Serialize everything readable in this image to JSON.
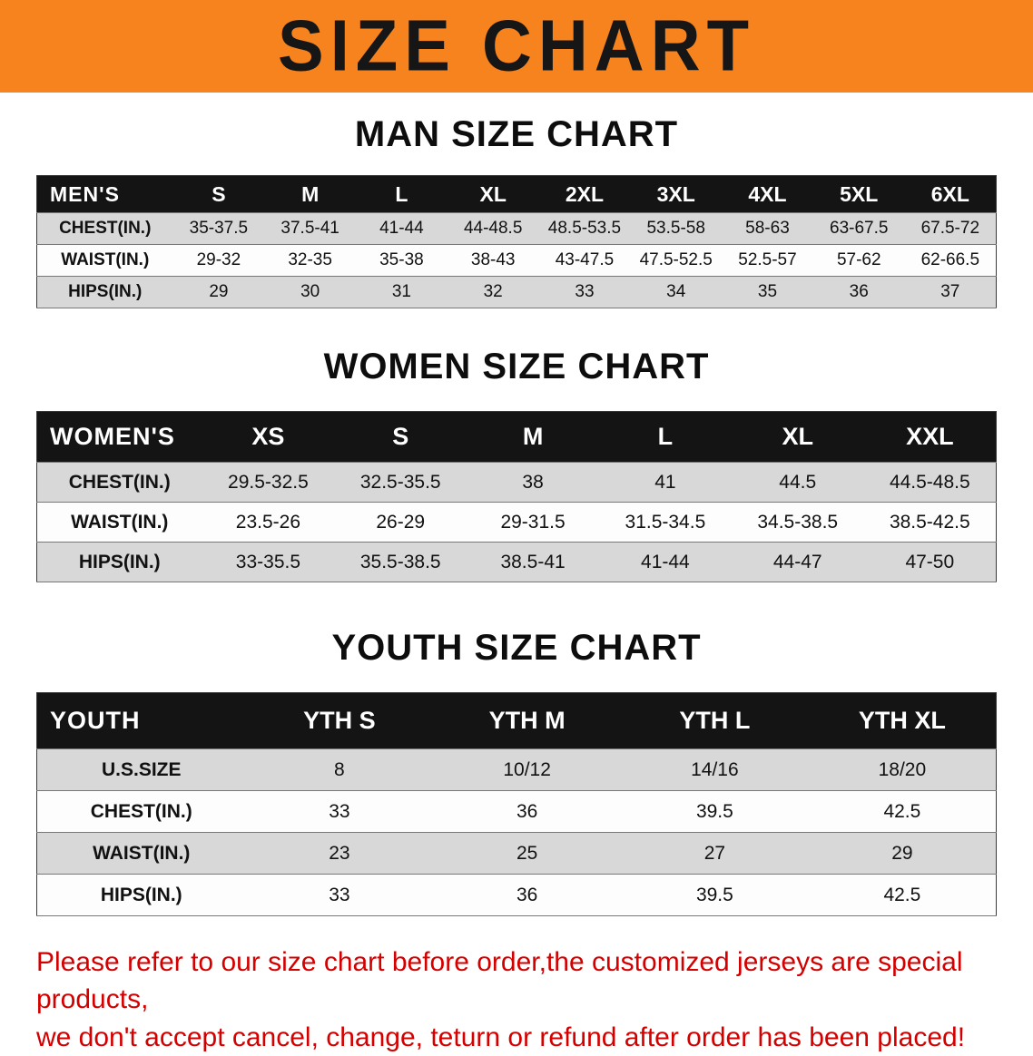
{
  "banner": {
    "title": "SIZE CHART",
    "bg_color": "#f6831d",
    "text_color": "#161616"
  },
  "sections": [
    {
      "id": "mens",
      "heading": "MAN SIZE CHART",
      "header_label": "MEN'S",
      "columns": [
        "S",
        "M",
        "L",
        "XL",
        "2XL",
        "3XL",
        "4XL",
        "5XL",
        "6XL"
      ],
      "rows": [
        {
          "label": "CHEST(IN.)",
          "values": [
            "35-37.5",
            "37.5-41",
            "41-44",
            "44-48.5",
            "48.5-53.5",
            "53.5-58",
            "58-63",
            "63-67.5",
            "67.5-72"
          ]
        },
        {
          "label": "WAIST(IN.)",
          "values": [
            "29-32",
            "32-35",
            "35-38",
            "38-43",
            "43-47.5",
            "47.5-52.5",
            "52.5-57",
            "57-62",
            "62-66.5"
          ]
        },
        {
          "label": "HIPS(IN.)",
          "values": [
            "29",
            "30",
            "31",
            "32",
            "33",
            "34",
            "35",
            "36",
            "37"
          ]
        }
      ]
    },
    {
      "id": "womens",
      "heading": "WOMEN SIZE CHART",
      "header_label": "WOMEN'S",
      "columns": [
        "XS",
        "S",
        "M",
        "L",
        "XL",
        "XXL"
      ],
      "rows": [
        {
          "label": "CHEST(IN.)",
          "values": [
            "29.5-32.5",
            "32.5-35.5",
            "38",
            "41",
            "44.5",
            "44.5-48.5"
          ]
        },
        {
          "label": "WAIST(IN.)",
          "values": [
            "23.5-26",
            "26-29",
            "29-31.5",
            "31.5-34.5",
            "34.5-38.5",
            "38.5-42.5"
          ]
        },
        {
          "label": "HIPS(IN.)",
          "values": [
            "33-35.5",
            "35.5-38.5",
            "38.5-41",
            "41-44",
            "44-47",
            "47-50"
          ]
        }
      ]
    },
    {
      "id": "youth",
      "heading": "YOUTH SIZE CHART",
      "header_label": "YOUTH",
      "columns": [
        "YTH S",
        "YTH M",
        "YTH L",
        "YTH XL"
      ],
      "rows": [
        {
          "label": "U.S.SIZE",
          "values": [
            "8",
            "10/12",
            "14/16",
            "18/20"
          ]
        },
        {
          "label": "CHEST(IN.)",
          "values": [
            "33",
            "36",
            "39.5",
            "42.5"
          ]
        },
        {
          "label": "WAIST(IN.)",
          "values": [
            "23",
            "25",
            "27",
            "29"
          ]
        },
        {
          "label": "HIPS(IN.)",
          "values": [
            "33",
            "36",
            "39.5",
            "42.5"
          ]
        }
      ]
    }
  ],
  "footer": {
    "lines": [
      "Please refer to our size chart before order,the customized jerseys are special products,",
      "we don't accept cancel, change, teturn or refund after order has been placed!"
    ],
    "text_color": "#d40000"
  }
}
